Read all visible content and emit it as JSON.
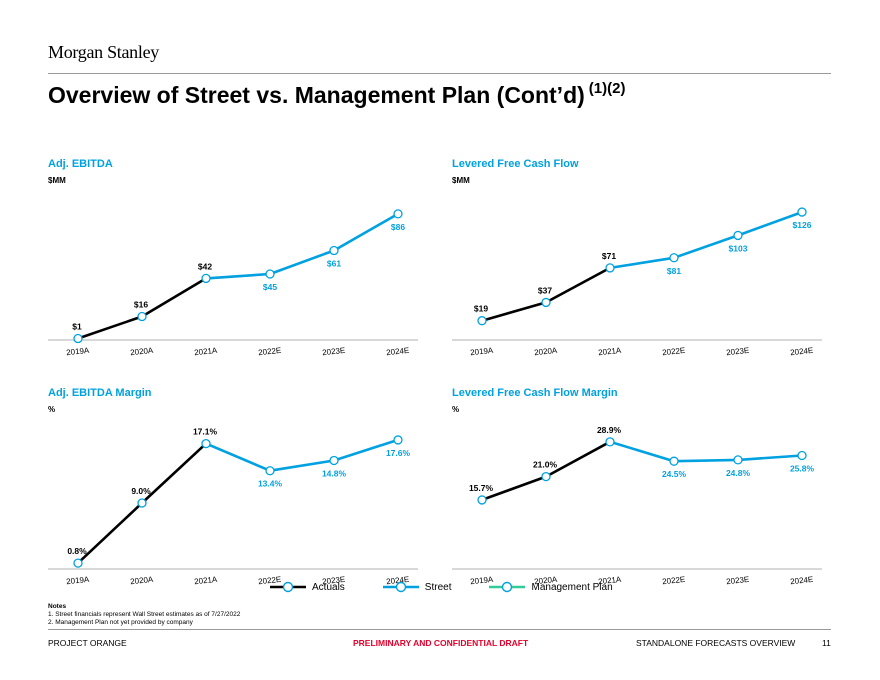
{
  "header": {
    "logo": "Morgan Stanley",
    "title": "Overview of Street vs. Management Plan (Cont’d)",
    "title_footnote": "(1)(2)"
  },
  "colors": {
    "actuals": "#000000",
    "street": "#00A1E0",
    "mgmt": "#33CC99",
    "axis": "#b0b0b0"
  },
  "chart_data": [
    {
      "type": "line",
      "title": "Adj. EBITDA",
      "unit": "$MM",
      "categories": [
        "2019A",
        "2020A",
        "2021A",
        "2022E",
        "2023E",
        "2024E"
      ],
      "series": [
        {
          "name": "Actuals",
          "values": [
            1,
            16,
            42,
            null,
            null,
            null
          ]
        },
        {
          "name": "Street",
          "values": [
            null,
            null,
            42,
            45,
            61,
            86
          ]
        }
      ],
      "labels": [
        "$1",
        "$16",
        "$42",
        "$45",
        "$61",
        "$86"
      ],
      "ylim": [
        0,
        90
      ]
    },
    {
      "type": "line",
      "title": "Levered Free Cash Flow",
      "unit": "$MM",
      "categories": [
        "2019A",
        "2020A",
        "2021A",
        "2022E",
        "2023E",
        "2024E"
      ],
      "series": [
        {
          "name": "Actuals",
          "values": [
            19,
            37,
            71,
            null,
            null,
            null
          ]
        },
        {
          "name": "Street",
          "values": [
            null,
            null,
            71,
            81,
            103,
            126
          ]
        }
      ],
      "labels": [
        "$19",
        "$37",
        "$71",
        "$81",
        "$103",
        "$126"
      ],
      "ylim": [
        0,
        130
      ]
    },
    {
      "type": "line",
      "title": "Adj. EBITDA Margin",
      "unit": "%",
      "categories": [
        "2019A",
        "2020A",
        "2021A",
        "2022E",
        "2023E",
        "2024E"
      ],
      "series": [
        {
          "name": "Actuals",
          "values": [
            0.8,
            9.0,
            17.1,
            null,
            null,
            null
          ]
        },
        {
          "name": "Street",
          "values": [
            null,
            null,
            17.1,
            13.4,
            14.8,
            17.6
          ]
        }
      ],
      "labels": [
        "0.8%",
        "9.0%",
        "17.1%",
        "13.4%",
        "14.8%",
        "17.6%"
      ],
      "ylim": [
        0,
        18
      ]
    },
    {
      "type": "line",
      "title": "Levered Free Cash Flow Margin",
      "unit": "%",
      "categories": [
        "2019A",
        "2020A",
        "2021A",
        "2022E",
        "2023E",
        "2024E"
      ],
      "series": [
        {
          "name": "Actuals",
          "values": [
            15.7,
            21.0,
            28.9,
            null,
            null,
            null
          ]
        },
        {
          "name": "Street",
          "values": [
            null,
            null,
            28.9,
            24.5,
            24.8,
            25.8
          ]
        }
      ],
      "labels": [
        "15.7%",
        "21.0%",
        "28.9%",
        "24.5%",
        "24.8%",
        "25.8%"
      ],
      "ylim": [
        0,
        30
      ]
    }
  ],
  "legend": {
    "actuals": "Actuals",
    "street": "Street",
    "mgmt": "Management Plan"
  },
  "notes": {
    "header": "Notes",
    "items": [
      "1.  Street financials represent Wall Street estimates as of 7/27/2022",
      "2.  Management Plan not yet provided by company"
    ]
  },
  "footer": {
    "left": "PROJECT ORANGE",
    "center": "PRELIMINARY AND CONFIDENTIAL DRAFT",
    "right": "STANDALONE FORECASTS OVERVIEW",
    "page": "11"
  }
}
